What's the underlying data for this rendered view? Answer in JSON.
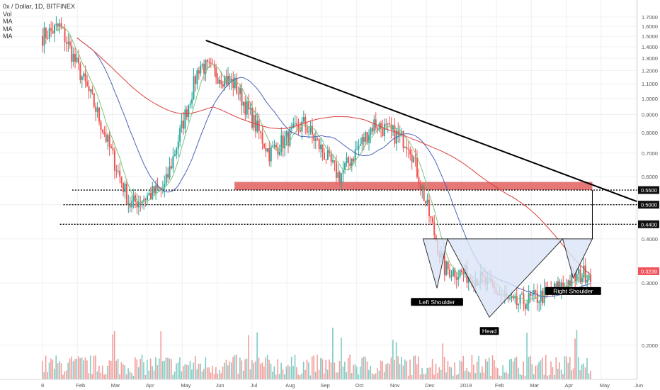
{
  "legend": {
    "symbol_line": "0x / Dollar, 1D, BITFINEX",
    "volume_label": "Vol",
    "ma_labels": [
      "MA",
      "MA",
      "MA"
    ]
  },
  "colors": {
    "up_candle": "#26a69a",
    "down_candle": "#ef5350",
    "up_volume": "#80cbc4",
    "down_volume": "#f19c9a",
    "ma_fast": "#7cc37c",
    "ma_mid": "#4e63b5",
    "ma_slow": "#d9403a",
    "trendline": "#000000",
    "resistance_zone": "#e15f5f",
    "pattern_fill": "#dbe4f7",
    "current_price_badge": "#f2525b",
    "grid": "#eef0f4"
  },
  "chart_data": {
    "type": "candlestick",
    "x_axis_labels": [
      "8",
      "Feb",
      "Mar",
      "Apr",
      "May",
      "Jun",
      "Jul",
      "Aug",
      "Sep",
      "Oct",
      "Nov",
      "Dec",
      "2019",
      "Feb",
      "Mar",
      "Apr",
      "May",
      "Jun"
    ],
    "y_scale": "log",
    "y_range": [
      0.16,
      1.9
    ],
    "y_tick_labels": [
      "1.7000",
      "1.6000",
      "1.5000",
      "1.4000",
      "1.3000",
      "1.2000",
      "1.1000",
      "1.0000",
      "0.9000",
      "0.8000",
      "0.7000",
      "0.6000",
      "0.5000",
      "0.4000",
      "0.3000",
      "0.2000"
    ],
    "price_badges": [
      {
        "label": "0.5500",
        "value": 0.55,
        "style": "black"
      },
      {
        "label": "0.5000",
        "value": 0.5,
        "style": "black"
      },
      {
        "label": "0.4400",
        "value": 0.44,
        "style": "black"
      },
      {
        "label": "0.3239",
        "value": 0.3239,
        "style": "red"
      }
    ],
    "price_path_months_close": [
      {
        "month": "Jan",
        "close": 1.6
      },
      {
        "month": "Feb",
        "close": 0.95
      },
      {
        "month": "Mar",
        "close": 0.5
      },
      {
        "month": "Apr",
        "close": 0.56
      },
      {
        "month": "May",
        "close": 1.25
      },
      {
        "month": "Jun",
        "close": 1.1
      },
      {
        "month": "Jul",
        "close": 0.7
      },
      {
        "month": "Aug",
        "close": 0.85
      },
      {
        "month": "Sep",
        "close": 0.6
      },
      {
        "month": "Oct",
        "close": 0.85
      },
      {
        "month": "Nov",
        "close": 0.75
      },
      {
        "month": "Dec",
        "close": 0.33
      },
      {
        "month": "2019",
        "close": 0.31
      },
      {
        "month": "Feb",
        "close": 0.26
      },
      {
        "month": "Mar",
        "close": 0.28
      },
      {
        "month": "Apr",
        "close": 0.32
      }
    ],
    "horizontal_levels": [
      0.55,
      0.5,
      0.44
    ],
    "resistance_zone": [
      0.55,
      0.58
    ],
    "annotations": [
      "Left Shoulder",
      "Head",
      "Right Shoulder"
    ],
    "drawings": [
      "descending trendline",
      "inverse head and shoulders pattern"
    ],
    "grid": true
  }
}
